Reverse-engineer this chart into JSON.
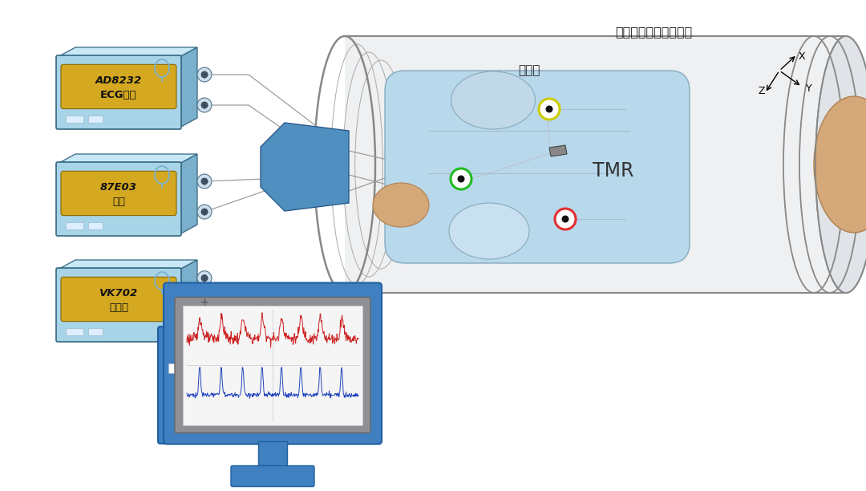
{
  "bg_color": "#ffffff",
  "module1_label1": "AD8232",
  "module1_label2": "ECG模块",
  "module2_label1": "87E03",
  "module2_label2": "模块",
  "module3_label1": "VK702",
  "module3_label2": "采集卡",
  "barrel_label": "磁屏蔽桶（两端开口）",
  "electrode_label": "电极贴",
  "tmr_label": "TMR",
  "axis_z": "Z",
  "axis_y": "Y",
  "axis_x": "X",
  "module_body_color": "#a8d4e8",
  "module_top_color": "#c8e8f8",
  "module_gold_color": "#d4a820",
  "module_shadow_color": "#7ab0cc",
  "module_edge": "#336680",
  "barrel_wall_color": "#e8eef2",
  "barrel_edge": "#888888",
  "phantom_body_color": "#b8d8ec",
  "phantom_body_dark": "#90bcd8",
  "phantom_skin_color": "#d4a878",
  "phantom_skin_dark": "#b08050",
  "blue_connector_color": "#5090c0",
  "blue_connector_dark": "#2a5a8a",
  "monitor_blue": "#4080c0",
  "monitor_light_blue": "#5090d0",
  "monitor_dark_blue": "#2060a0",
  "monitor_bg_blue": "#3070b8",
  "screen_gray": "#909094",
  "screen_white": "#f8f8f8",
  "red_circle_color": "#e03030",
  "green_circle_color": "#22bb22",
  "yellow_circle_color": "#cccc00"
}
